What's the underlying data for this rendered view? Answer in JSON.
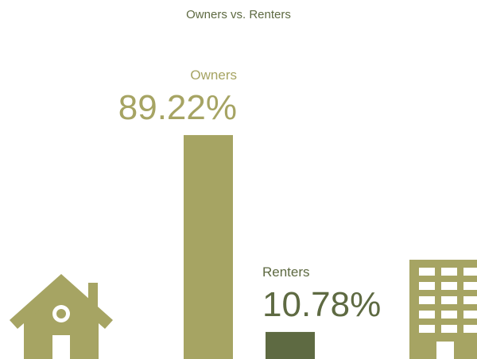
{
  "chart_data": {
    "type": "bar",
    "title": "Owners vs. Renters",
    "categories": [
      "Owners",
      "Renters"
    ],
    "values": [
      89.22,
      10.78
    ],
    "value_labels": [
      "89.22%",
      "10.78%"
    ],
    "colors": [
      "#a6a463",
      "#5e6a42"
    ]
  }
}
